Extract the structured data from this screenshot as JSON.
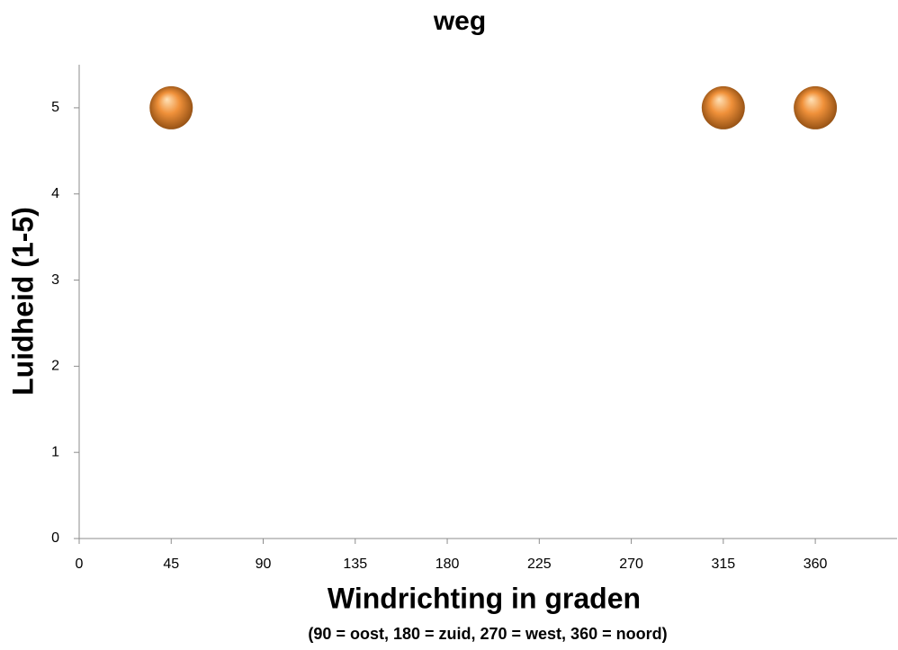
{
  "chart_data": {
    "type": "scatter",
    "title": "weg",
    "xlabel": "Windrichting in graden",
    "xlabel_note": "(90 = oost, 180 = zuid, 270 = west, 360 = noord)",
    "ylabel": "Luidheid (1-5)",
    "x": [
      45,
      315,
      360
    ],
    "values": [
      5,
      5,
      5
    ],
    "color": "#f0913a",
    "xlim": [
      0,
      400
    ],
    "xticks": [
      0,
      45,
      90,
      135,
      180,
      225,
      270,
      315,
      360
    ],
    "ylim": [
      0,
      5.5
    ],
    "yticks": [
      0,
      1,
      2,
      3,
      4,
      5
    ],
    "grid": false
  }
}
